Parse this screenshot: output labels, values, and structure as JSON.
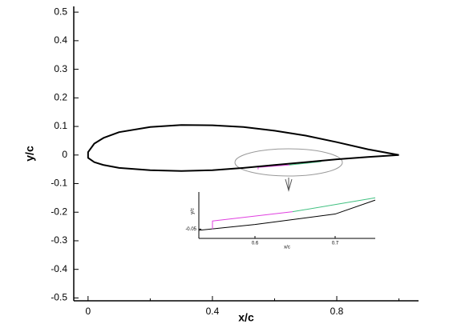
{
  "chart_data": [
    {
      "type": "line",
      "xlabel": "x/c",
      "ylabel": "y/c",
      "xlim": [
        -0.046,
        1.063
      ],
      "ylim": [
        -0.51,
        0.52
      ],
      "xticks": [
        0,
        0.4,
        0.8
      ],
      "xminorticks": [
        0.2,
        0.6,
        1.0
      ],
      "yticks": [
        -0.5,
        -0.4,
        -0.3,
        -0.2,
        -0.1,
        0,
        0.1,
        0.2,
        0.3,
        0.4,
        0.5
      ],
      "series": [
        {
          "color": "#000000",
          "x": [
            1.0,
            0.9,
            0.8,
            0.7,
            0.6,
            0.5,
            0.4,
            0.3,
            0.2,
            0.1,
            0.05,
            0.02,
            0.0,
            0.0,
            0.02,
            0.05,
            0.1,
            0.2,
            0.3,
            0.4,
            0.5,
            0.6,
            0.7,
            0.8,
            0.9,
            1.0
          ],
          "y": [
            0.0,
            0.02,
            0.045,
            0.068,
            0.085,
            0.098,
            0.104,
            0.105,
            0.098,
            0.08,
            0.06,
            0.04,
            0.01,
            -0.01,
            -0.025,
            -0.035,
            -0.045,
            -0.053,
            -0.056,
            -0.053,
            -0.045,
            -0.035,
            -0.025,
            -0.015,
            -0.007,
            0.0
          ]
        },
        {
          "color": "#e040e0",
          "x": [
            0.547,
            0.547,
            0.647
          ],
          "y": [
            -0.05,
            -0.043,
            -0.035
          ]
        },
        {
          "color": "#40c080",
          "x": [
            0.647,
            0.75
          ],
          "y": [
            -0.035,
            -0.023
          ]
        }
      ]
    },
    {
      "type": "line",
      "xlabel": "x/c",
      "ylabel": "y/c",
      "xlim": [
        0.53,
        0.75
      ],
      "ylim": [
        -0.058,
        -0.018
      ],
      "xticks": [
        0.6,
        0.7
      ],
      "yticks": [
        -0.05
      ],
      "series": [
        {
          "color": "#000000",
          "x": [
            0.53,
            0.6,
            0.7,
            0.75
          ],
          "y": [
            -0.051,
            -0.046,
            -0.037,
            -0.025
          ]
        },
        {
          "color": "#e040e0",
          "x": [
            0.547,
            0.547,
            0.647
          ],
          "y": [
            -0.05,
            -0.043,
            -0.035
          ]
        },
        {
          "color": "#40c080",
          "x": [
            0.647,
            0.75
          ],
          "y": [
            -0.035,
            -0.023
          ]
        }
      ]
    }
  ]
}
